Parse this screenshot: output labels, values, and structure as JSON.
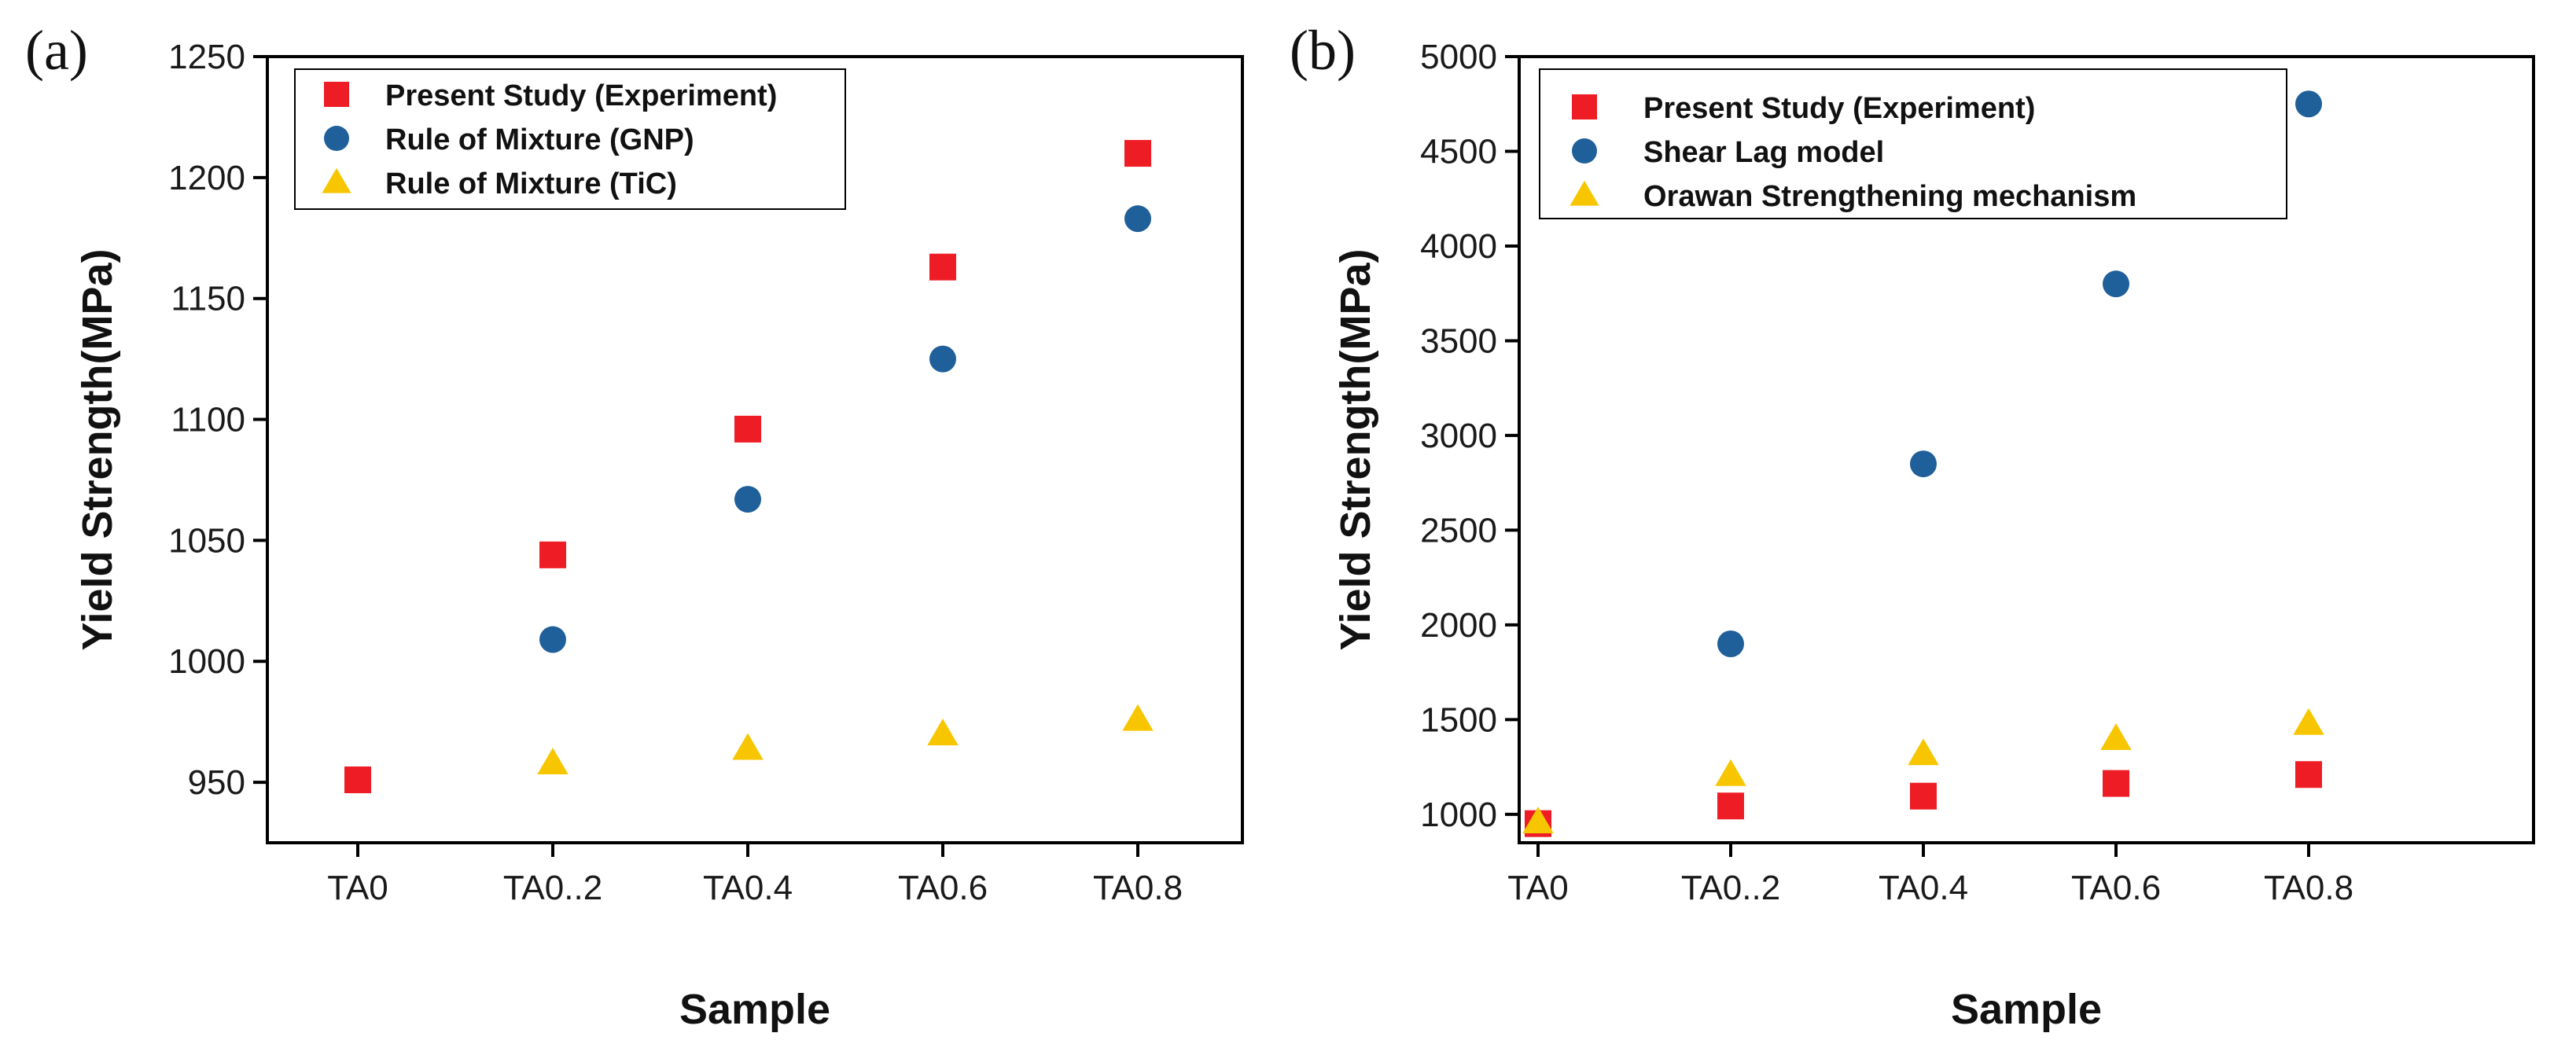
{
  "colors": {
    "experiment": "#ee1c25",
    "model": "#1f5f9a",
    "mechanism": "#f7c600",
    "axis": "#000000",
    "background": "#ffffff"
  },
  "chart_data": [
    {
      "type": "scatter",
      "panel_label": "(a)",
      "title": "",
      "xlabel": "Sample",
      "ylabel": "Yield Strength(MPa)",
      "categories": [
        "TA0",
        "TA0..2",
        "TA0.4",
        "TA0.6",
        "TA0.8"
      ],
      "ylim": [
        925,
        1250
      ],
      "yticks": [
        950,
        1000,
        1050,
        1100,
        1150,
        1200,
        1250
      ],
      "legend_position": "top-left",
      "series": [
        {
          "name": "Present Study (Experiment)",
          "marker": "square",
          "color_key": "experiment",
          "values": [
            951,
            1044,
            1096,
            1163,
            1210
          ]
        },
        {
          "name": "Rule of Mixture (GNP)",
          "marker": "circle",
          "color_key": "model",
          "values": [
            null,
            1009,
            1067,
            1125,
            1183
          ]
        },
        {
          "name": "Rule of Mixture (TiC)",
          "marker": "triangle",
          "color_key": "mechanism",
          "values": [
            null,
            958,
            964,
            970,
            976
          ]
        }
      ]
    },
    {
      "type": "scatter",
      "panel_label": "(b)",
      "title": "",
      "xlabel": "Sample",
      "ylabel": "Yield Strength(MPa)",
      "categories": [
        "TA0",
        "TA0..2",
        "TA0.4",
        "TA0.6",
        "TA0.8"
      ],
      "ylim": [
        850,
        5000
      ],
      "yticks": [
        1000,
        1500,
        2000,
        2500,
        3000,
        3500,
        4000,
        4500,
        5000
      ],
      "legend_position": "top-left",
      "series": [
        {
          "name": "Present Study (Experiment)",
          "marker": "square",
          "color_key": "experiment",
          "values": [
            951,
            1044,
            1096,
            1163,
            1210
          ]
        },
        {
          "name": "Shear Lag model",
          "marker": "circle",
          "color_key": "model",
          "values": [
            951,
            1900,
            2850,
            3800,
            4750
          ]
        },
        {
          "name": "Orawan Strengthening mechanism",
          "marker": "triangle",
          "color_key": "mechanism",
          "values": [
            960,
            1210,
            1320,
            1400,
            1480
          ]
        }
      ]
    }
  ]
}
